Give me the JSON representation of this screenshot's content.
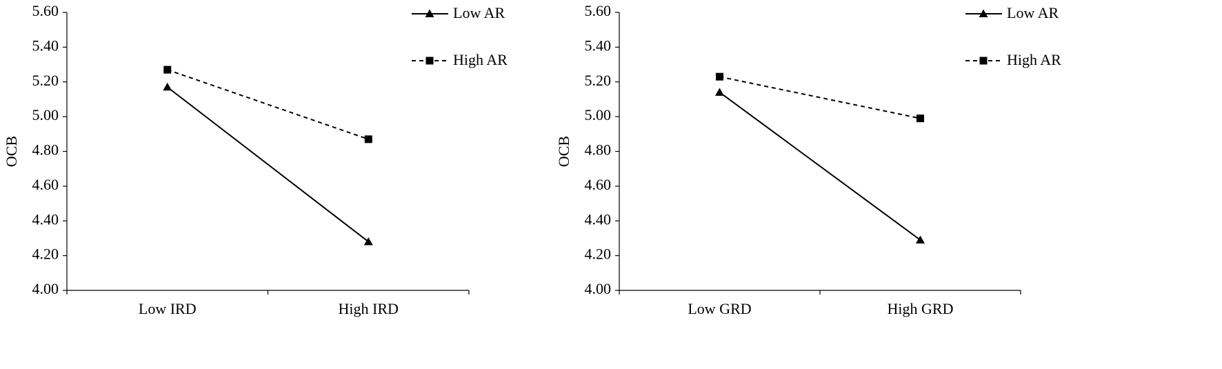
{
  "chart_data": [
    {
      "type": "line",
      "y_label": "OCB",
      "categories": [
        "Low IRD",
        "High IRD"
      ],
      "series": [
        {
          "name": "Low AR",
          "color": "#000000",
          "marker": "triangle",
          "dash": "solid",
          "values": [
            5.17,
            4.28
          ]
        },
        {
          "name": "High AR",
          "color": "#000000",
          "marker": "square",
          "dash": "dashed",
          "values": [
            5.27,
            4.87
          ]
        }
      ],
      "ylim": [
        4.0,
        5.6
      ],
      "yticks": [
        {
          "value": 4.0,
          "label": "4.00"
        },
        {
          "value": 4.2,
          "label": "4.20"
        },
        {
          "value": 4.4,
          "label": "4.40"
        },
        {
          "value": 4.6,
          "label": "4.60"
        },
        {
          "value": 4.8,
          "label": "4.80"
        },
        {
          "value": 5.0,
          "label": "5.00"
        },
        {
          "value": 5.2,
          "label": "5.20"
        },
        {
          "value": 5.4,
          "label": "5.40"
        },
        {
          "value": 5.6,
          "label": "5.60"
        }
      ],
      "legend": "upper right"
    },
    {
      "type": "line",
      "y_label": "OCB",
      "categories": [
        "Low GRD",
        "High GRD"
      ],
      "series": [
        {
          "name": "Low AR",
          "color": "#000000",
          "marker": "triangle",
          "dash": "solid",
          "values": [
            5.14,
            4.29
          ]
        },
        {
          "name": "High AR",
          "color": "#000000",
          "marker": "square",
          "dash": "dashed",
          "values": [
            5.23,
            4.99
          ]
        }
      ],
      "ylim": [
        4.0,
        5.6
      ],
      "yticks": [
        {
          "value": 4.0,
          "label": "4.00"
        },
        {
          "value": 4.2,
          "label": "4.20"
        },
        {
          "value": 4.4,
          "label": "4.40"
        },
        {
          "value": 4.6,
          "label": "4.60"
        },
        {
          "value": 4.8,
          "label": "4.80"
        },
        {
          "value": 5.0,
          "label": "5.00"
        },
        {
          "value": 5.2,
          "label": "5.20"
        },
        {
          "value": 5.4,
          "label": "5.40"
        },
        {
          "value": 5.6,
          "label": "5.60"
        }
      ],
      "legend": "upper right"
    }
  ]
}
